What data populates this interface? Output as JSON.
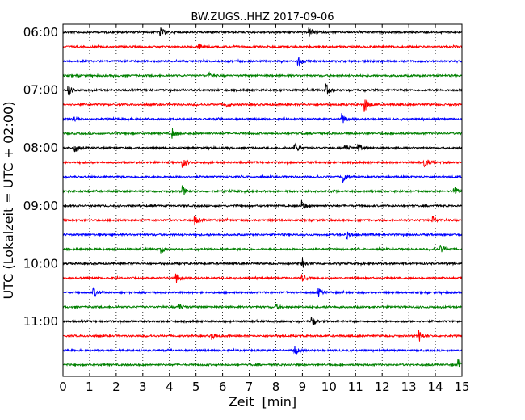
{
  "chart_data": {
    "type": "line",
    "title": "BW.ZUGS..HHZ 2017-09-06",
    "xlabel": "Zeit  [min]",
    "ylabel": "UTC (Lokalzeit = UTC + 02:00)",
    "xlim": [
      0,
      15
    ],
    "x_ticks": [
      "0",
      "1",
      "2",
      "3",
      "4",
      "5",
      "6",
      "7",
      "8",
      "9",
      "10",
      "11",
      "12",
      "13",
      "14",
      "15"
    ],
    "y_tick_labels": [
      "06:00",
      "07:00",
      "08:00",
      "09:00",
      "10:00",
      "11:00"
    ],
    "y_tick_traces": [
      0,
      4,
      8,
      12,
      16,
      20
    ],
    "grid": "vertical dotted",
    "trace_colors": [
      "#000000",
      "#ff0000",
      "#0000ff",
      "#008000"
    ],
    "series": [
      {
        "start": "06:00",
        "events": [
          [
            3.65,
            0.9
          ],
          [
            9.25,
            0.9
          ]
        ]
      },
      {
        "start": "06:15",
        "events": [
          [
            5.1,
            0.5
          ]
        ]
      },
      {
        "start": "06:30",
        "events": [
          [
            8.85,
            0.9
          ]
        ]
      },
      {
        "start": "06:45",
        "events": [
          [
            5.5,
            0.4
          ]
        ]
      },
      {
        "start": "07:00",
        "events": [
          [
            0.2,
            1.0
          ],
          [
            9.9,
            1.0
          ]
        ]
      },
      {
        "start": "07:15",
        "events": [
          [
            6.1,
            0.5
          ],
          [
            11.35,
            1.6
          ]
        ]
      },
      {
        "start": "07:30",
        "events": [
          [
            0.35,
            0.8
          ],
          [
            10.5,
            0.9
          ]
        ]
      },
      {
        "start": "07:45",
        "events": [
          [
            4.1,
            0.9
          ]
        ]
      },
      {
        "start": "08:00",
        "events": [
          [
            0.45,
            0.9
          ],
          [
            8.7,
            1.1
          ],
          [
            10.6,
            0.9
          ],
          [
            11.1,
            0.8
          ]
        ]
      },
      {
        "start": "08:15",
        "events": [
          [
            4.5,
            0.9
          ],
          [
            13.6,
            1.0
          ]
        ]
      },
      {
        "start": "08:30",
        "events": [
          [
            10.55,
            1.0
          ]
        ]
      },
      {
        "start": "08:45",
        "events": [
          [
            4.5,
            0.9
          ],
          [
            14.7,
            1.0
          ]
        ]
      },
      {
        "start": "09:00",
        "events": [
          [
            9.0,
            0.9
          ]
        ]
      },
      {
        "start": "09:15",
        "events": [
          [
            4.95,
            0.8
          ],
          [
            13.9,
            0.8
          ]
        ]
      },
      {
        "start": "09:30",
        "events": [
          [
            10.65,
            0.9
          ]
        ]
      },
      {
        "start": "09:45",
        "events": [
          [
            3.7,
            0.6
          ],
          [
            14.2,
            0.8
          ]
        ]
      },
      {
        "start": "10:00",
        "events": [
          [
            9.0,
            0.9
          ]
        ]
      },
      {
        "start": "10:15",
        "events": [
          [
            4.25,
            1.0
          ],
          [
            9.0,
            0.6
          ]
        ]
      },
      {
        "start": "10:30",
        "events": [
          [
            1.15,
            0.9
          ],
          [
            9.6,
            0.8
          ]
        ]
      },
      {
        "start": "10:45",
        "events": [
          [
            4.35,
            0.8
          ],
          [
            8.0,
            0.4
          ]
        ]
      },
      {
        "start": "11:00",
        "events": [
          [
            9.35,
            0.9
          ]
        ]
      },
      {
        "start": "11:15",
        "events": [
          [
            5.6,
            0.6
          ],
          [
            13.4,
            1.0
          ]
        ]
      },
      {
        "start": "11:30",
        "events": [
          [
            8.7,
            1.0
          ]
        ]
      },
      {
        "start": "11:45",
        "events": [
          [
            14.85,
            1.0
          ]
        ]
      }
    ]
  }
}
